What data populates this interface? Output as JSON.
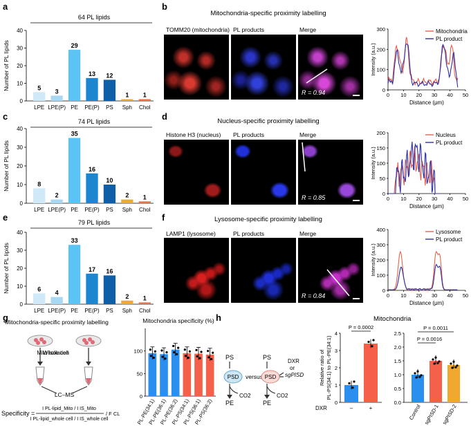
{
  "panels": {
    "a": {
      "letter": "a"
    },
    "b": {
      "letter": "b",
      "title": "Mitochondria-specific proximity labelling",
      "ch1": "TOMM20 (mitochondria)",
      "ch2": "PL products",
      "ch3": "Merge",
      "r": "R = 0.94"
    },
    "c": {
      "letter": "c"
    },
    "d": {
      "letter": "d",
      "title": "Nucleus-specific proximity labelling",
      "ch1": "Histone H3 (nucleus)",
      "ch2": "PL products",
      "ch3": "Merge",
      "r": "R = 0.85"
    },
    "e": {
      "letter": "e"
    },
    "f": {
      "letter": "f",
      "title": "Lysosome-specific proximity labelling",
      "ch1": "LAMP1 (lysosome)",
      "ch2": "PL products",
      "ch3": "Merge",
      "r": "R = 0.84"
    },
    "g": {
      "letter": "g",
      "schematic_title": "Mitochondria-specific proximity labelling",
      "whole_cell": "Whole cell",
      "mito_iso": "Mito isolation",
      "lcms": "LC–MS",
      "specificity_label": "Specificity =",
      "numerator": "I PL-lipid_Mito / I IS_Mito",
      "denominator": "I PL-lipid_whole cell / I IS_whole cell",
      "fcl": "/ F CL"
    },
    "h": {
      "letter": "h",
      "ps": "PS",
      "psd": "PSD",
      "versus": "versus",
      "dxr": "DXR",
      "or": "or",
      "sgpisd": "sgPISD",
      "pe": "PE",
      "co2": "CO2",
      "mito_title": "Mitochondria"
    }
  },
  "chart_data": [
    {
      "id": "a",
      "type": "bar",
      "title": "64 PL lipids",
      "ylabel": "Number of PL lipids",
      "ylim": [
        0,
        40
      ],
      "yticks": [
        0,
        10,
        20,
        30,
        40
      ],
      "categories": [
        "LPE",
        "LPE(P)",
        "PE",
        "PE(P)",
        "PS",
        "Sph",
        "Chol"
      ],
      "values": [
        5,
        3,
        29,
        13,
        12,
        1,
        1
      ],
      "colors": [
        "#cfe9f8",
        "#a9d8f2",
        "#5bc4f5",
        "#1c86d1",
        "#0e5fa8",
        "#f0a82e",
        "#e8724a"
      ]
    },
    {
      "id": "b",
      "type": "line",
      "xlabel": "Distance (μm)",
      "ylabel": "Intensity (a.u.)",
      "xlim": [
        0,
        50
      ],
      "ylim": [
        0,
        300
      ],
      "xticks": [
        0,
        10,
        20,
        30,
        40,
        50
      ],
      "yticks": [
        0,
        100,
        200,
        300
      ],
      "series": [
        {
          "name": "Mitochondria",
          "color": "#e8604a"
        },
        {
          "name": "PL product",
          "color": "#2b2fa8"
        }
      ]
    },
    {
      "id": "c",
      "type": "bar",
      "title": "74 PL lipids",
      "ylabel": "Number of PL lipids",
      "ylim": [
        0,
        40
      ],
      "yticks": [
        0,
        10,
        20,
        30,
        40
      ],
      "categories": [
        "LPE",
        "LPE(P)",
        "PE",
        "PE(P)",
        "PS",
        "Sph",
        "Chol"
      ],
      "values": [
        8,
        2,
        35,
        16,
        10,
        2,
        1
      ],
      "colors": [
        "#cfe9f8",
        "#a9d8f2",
        "#5bc4f5",
        "#1c86d1",
        "#0e5fa8",
        "#f0a82e",
        "#e8724a"
      ]
    },
    {
      "id": "d",
      "type": "line",
      "xlabel": "Distance (μm)",
      "ylabel": "Intensity (a.u.)",
      "xlim": [
        0,
        50
      ],
      "ylim": [
        0,
        200
      ],
      "xticks": [
        0,
        10,
        20,
        30,
        40,
        50
      ],
      "yticks": [
        0,
        50,
        100,
        150,
        200
      ],
      "series": [
        {
          "name": "Nucleus",
          "color": "#e8604a"
        },
        {
          "name": "PL product",
          "color": "#2b2fa8"
        }
      ]
    },
    {
      "id": "e",
      "type": "bar",
      "title": "79 PL lipids",
      "ylabel": "Number of PL lipids",
      "ylim": [
        0,
        40
      ],
      "yticks": [
        0,
        10,
        20,
        30,
        40
      ],
      "categories": [
        "LPE",
        "LPE(P)",
        "PE",
        "PE(P)",
        "PS",
        "Sph",
        "Chol"
      ],
      "values": [
        6,
        4,
        33,
        17,
        16,
        2,
        1
      ],
      "colors": [
        "#cfe9f8",
        "#a9d8f2",
        "#5bc4f5",
        "#1c86d1",
        "#0e5fa8",
        "#f0a82e",
        "#e8724a"
      ]
    },
    {
      "id": "f",
      "type": "line",
      "xlabel": "Distance (μm)",
      "ylabel": "Intensity (a.u.)",
      "xlim": [
        0,
        50
      ],
      "ylim": [
        0,
        400
      ],
      "xticks": [
        0,
        10,
        20,
        30,
        40,
        50
      ],
      "yticks": [
        0,
        100,
        200,
        300,
        400
      ],
      "series": [
        {
          "name": "Lysosome",
          "color": "#e8604a"
        },
        {
          "name": "PL product",
          "color": "#2b2fa8"
        }
      ]
    },
    {
      "id": "g",
      "type": "bar",
      "title": "Mitochondria specificity (%)",
      "ylim": [
        0,
        150
      ],
      "yticks": [
        0,
        50,
        100
      ],
      "categories": [
        "PL-PE(34:1)",
        "PL-PE(36:1)",
        "PL-PE(36:2)",
        "PL-PS(34:1)",
        "PL-PS(36:1)",
        "PL-PS(36:2)"
      ],
      "values": [
        95,
        93,
        103,
        95,
        94,
        92
      ],
      "colors": [
        "#2b8ff0",
        "#2b8ff0",
        "#2b8ff0",
        "#f5604a",
        "#f5604a",
        "#f5604a"
      ]
    },
    {
      "id": "h1",
      "type": "bar",
      "ylabel": "Relative ratio of PL-PS(34:1) to PL-PE(34:1)",
      "ylim": [
        0,
        4
      ],
      "yticks": [
        0,
        1,
        2,
        3,
        4
      ],
      "xlabel": "DXR",
      "categories": [
        "–",
        "+"
      ],
      "values": [
        1.0,
        3.4
      ],
      "colors": [
        "#2b8ff0",
        "#f5604a"
      ],
      "pvalue": "P = 0.0002"
    },
    {
      "id": "h2",
      "type": "bar",
      "ylim": [
        0,
        2.5
      ],
      "yticks": [
        0,
        0.5,
        1.0,
        1.5,
        2.0,
        2.5
      ],
      "categories": [
        "Control",
        "sgPISD-1",
        "sgPISD-2"
      ],
      "values": [
        1.0,
        1.5,
        1.35
      ],
      "colors": [
        "#2b8ff0",
        "#f5604a",
        "#f0a82e"
      ],
      "pvalues": [
        "P = 0.0011",
        "P = 0.0016"
      ]
    }
  ]
}
